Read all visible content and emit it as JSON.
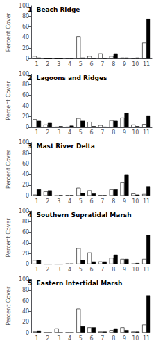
{
  "chart_data": [
    {
      "type": "bar",
      "title": "1  Beach Ridge",
      "categories": [
        1,
        2,
        3,
        4,
        5,
        6,
        7,
        8,
        9,
        10,
        11
      ],
      "series": [
        {
          "color": "#ffffff",
          "values": [
            5,
            0,
            0,
            1,
            42,
            5,
            10,
            5,
            2,
            1,
            30
          ]
        },
        {
          "color": "#000000",
          "values": [
            2,
            0,
            0,
            1,
            2,
            1,
            1,
            10,
            2,
            2,
            75
          ]
        }
      ],
      "ylabel": "Percent Cover",
      "ylim": [
        0,
        100
      ],
      "yticks": [
        0,
        20,
        40,
        60,
        80,
        100
      ],
      "grid": false
    },
    {
      "type": "bar",
      "title": "2  Lagoons and Ridges",
      "categories": [
        1,
        2,
        3,
        4,
        5,
        6,
        7,
        8,
        9,
        10,
        11
      ],
      "series": [
        {
          "color": "#ffffff",
          "values": [
            15,
            5,
            1,
            1,
            17,
            10,
            4,
            13,
            18,
            5,
            6
          ]
        },
        {
          "color": "#000000",
          "values": [
            12,
            8,
            2,
            3,
            12,
            2,
            1,
            12,
            27,
            2,
            22
          ]
        }
      ],
      "ylabel": "Percent Cover",
      "ylim": [
        0,
        100
      ],
      "yticks": [
        0,
        20,
        40,
        60,
        80,
        100
      ],
      "grid": false
    },
    {
      "type": "bar",
      "title": "3  Mast River Delta",
      "categories": [
        1,
        2,
        3,
        4,
        5,
        6,
        7,
        8,
        9,
        10,
        11
      ],
      "series": [
        {
          "color": "#ffffff",
          "values": [
            2,
            8,
            0,
            1,
            15,
            10,
            1,
            12,
            25,
            4,
            3
          ]
        },
        {
          "color": "#000000",
          "values": [
            12,
            10,
            1,
            1,
            5,
            4,
            1,
            12,
            40,
            2,
            18
          ]
        }
      ],
      "ylabel": "Percent Cover",
      "ylim": [
        0,
        100
      ],
      "yticks": [
        0,
        20,
        40,
        60,
        80,
        100
      ],
      "grid": false
    },
    {
      "type": "bar",
      "title": "4  Southern Supratidal Marsh",
      "categories": [
        1,
        2,
        3,
        4,
        5,
        6,
        7,
        8,
        9,
        10,
        11
      ],
      "series": [
        {
          "color": "#ffffff",
          "values": [
            8,
            0,
            0,
            1,
            30,
            22,
            5,
            12,
            10,
            1,
            10
          ]
        },
        {
          "color": "#000000",
          "values": [
            8,
            0,
            0,
            1,
            8,
            5,
            5,
            18,
            10,
            2,
            55
          ]
        }
      ],
      "ylabel": "Percent Cover",
      "ylim": [
        0,
        100
      ],
      "yticks": [
        0,
        20,
        40,
        60,
        80,
        100
      ],
      "grid": false
    },
    {
      "type": "bar",
      "title": "5  Eastern Intertidal Marsh",
      "categories": [
        1,
        2,
        3,
        4,
        5,
        6,
        7,
        8,
        9,
        10,
        11
      ],
      "series": [
        {
          "color": "#ffffff",
          "values": [
            2,
            0,
            8,
            0,
            45,
            10,
            2,
            5,
            10,
            2,
            15
          ]
        },
        {
          "color": "#000000",
          "values": [
            4,
            0,
            0,
            0,
            12,
            10,
            2,
            8,
            5,
            2,
            70
          ]
        }
      ],
      "ylabel": "Percent Cover",
      "ylim": [
        0,
        100
      ],
      "yticks": [
        0,
        20,
        40,
        60,
        80,
        100
      ],
      "grid": false
    }
  ]
}
